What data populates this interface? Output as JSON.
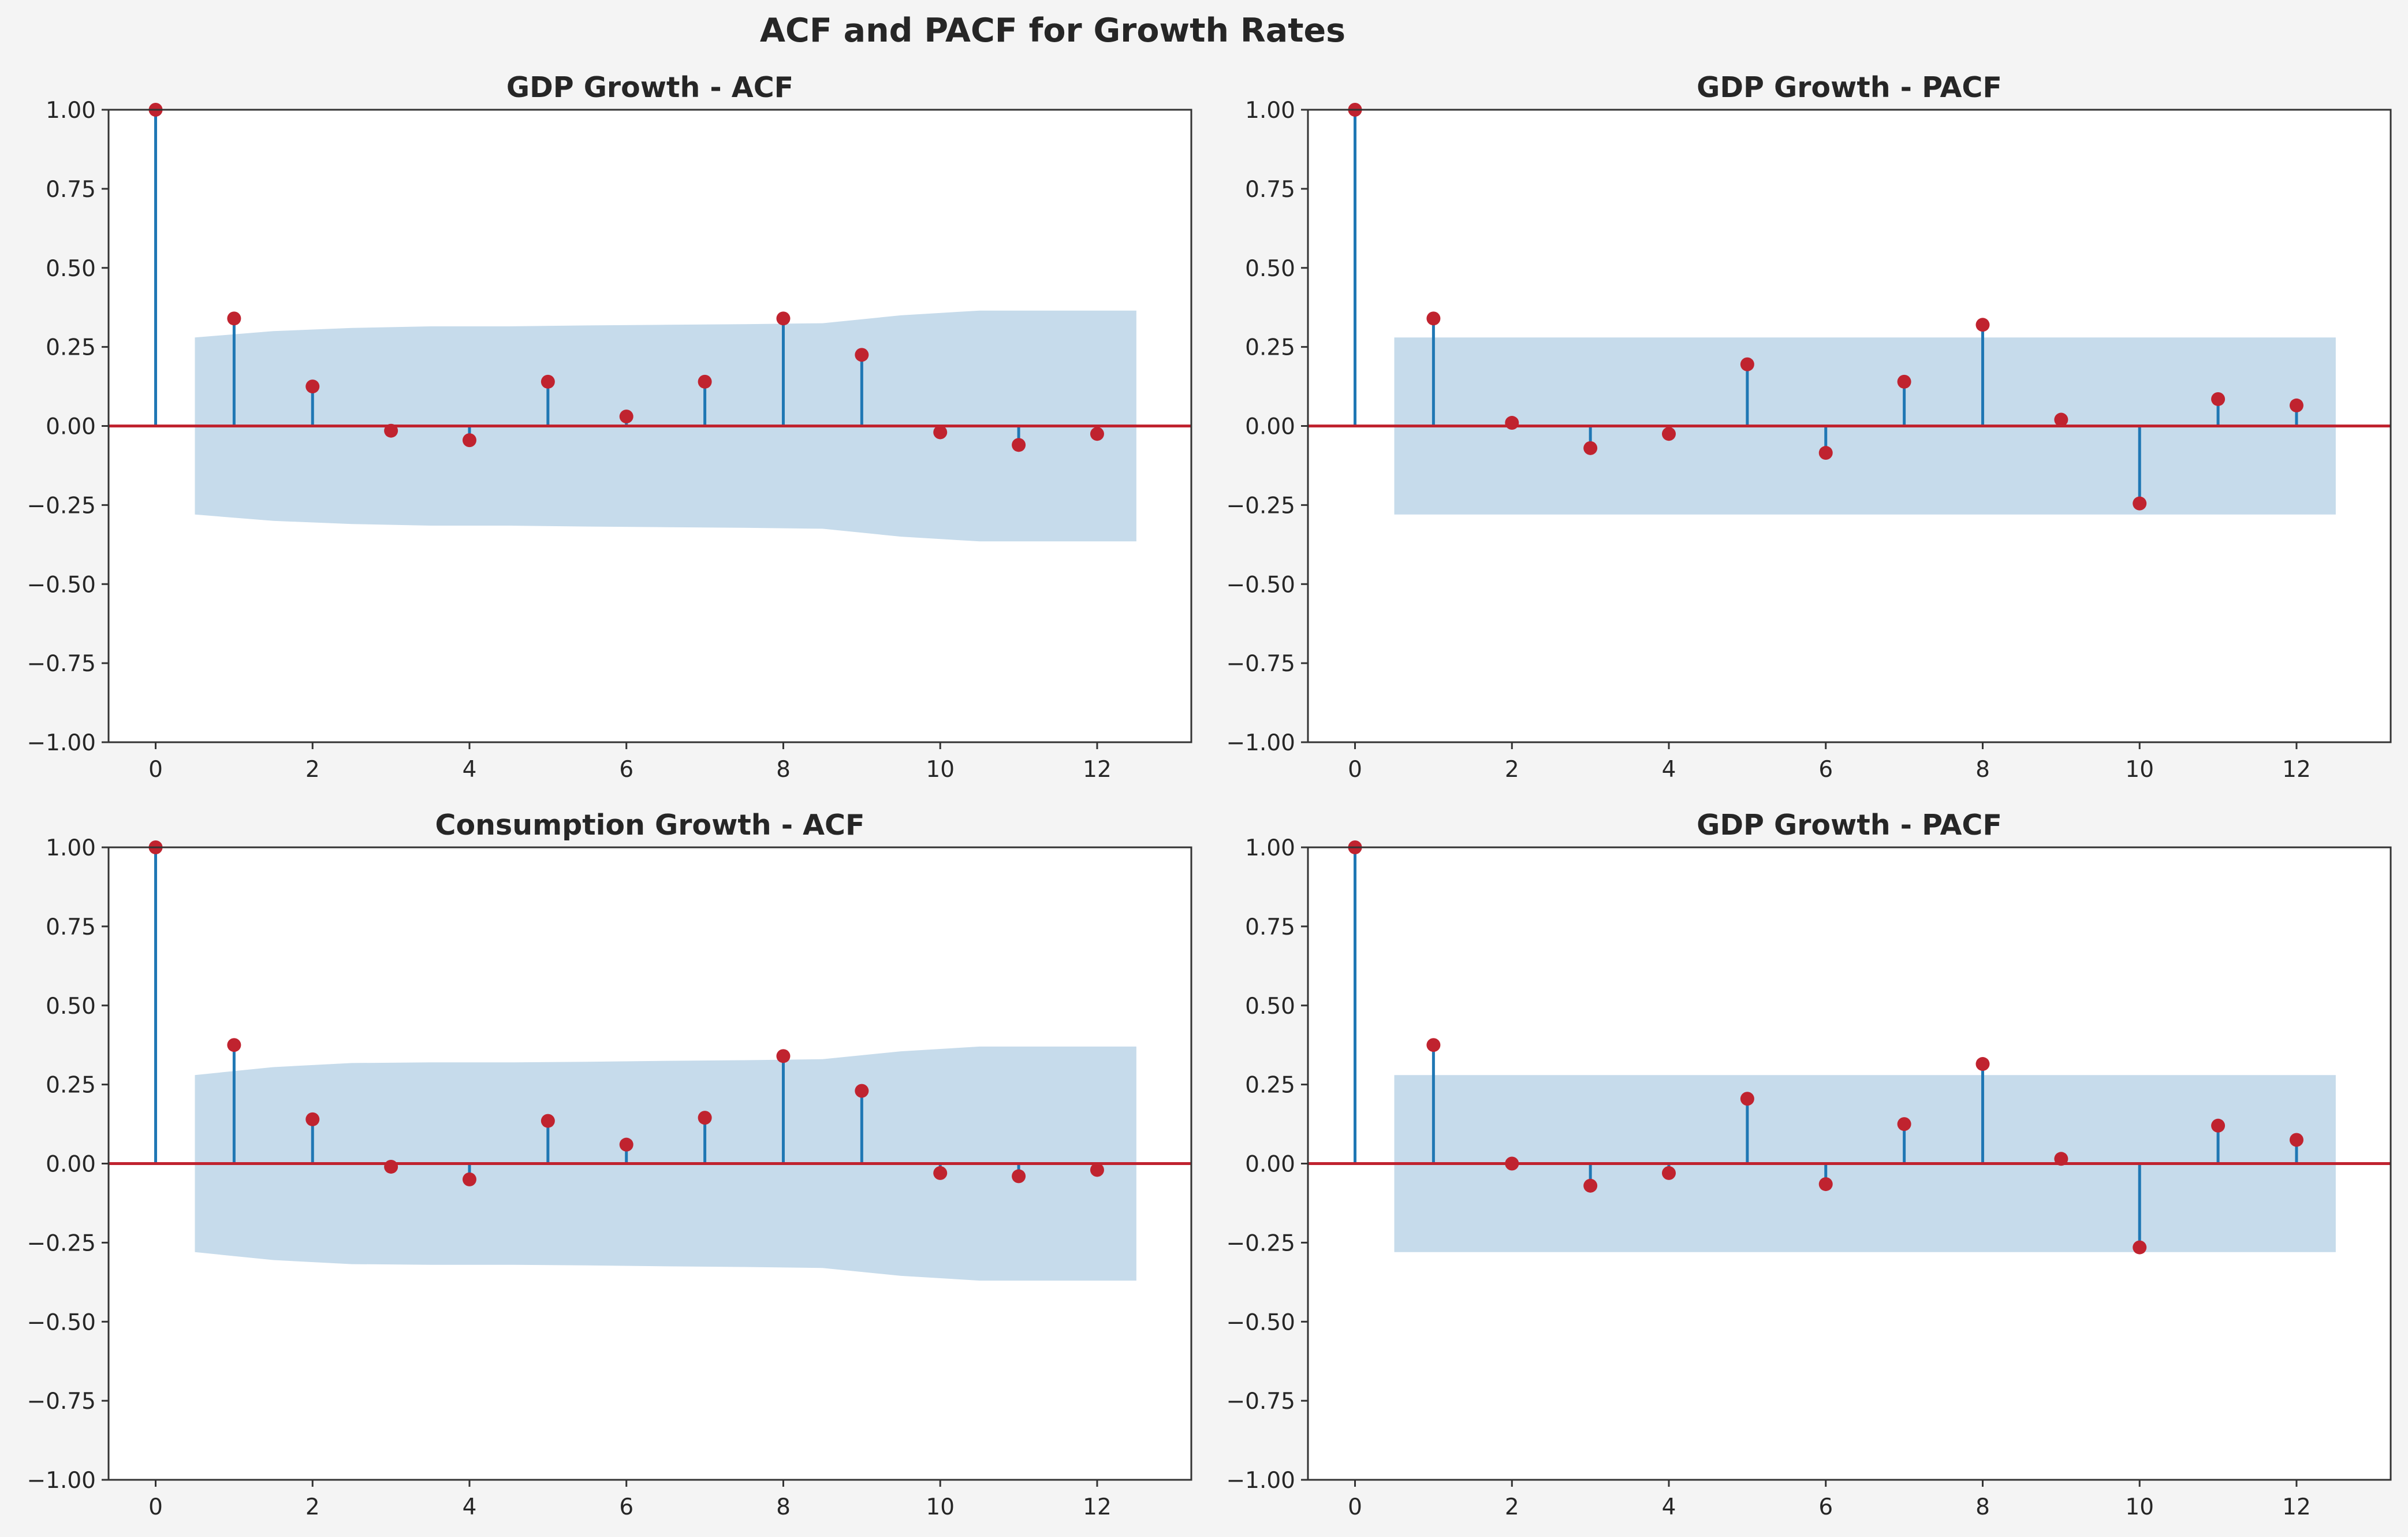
{
  "figure": {
    "suptitle": "ACF and PACF for Growth Rates",
    "background": "#f4f4f4"
  },
  "colors": {
    "stem": "#1f77b4",
    "marker": "#c0232f",
    "zero_line": "#c0232f",
    "confidence_band": "#c6dbeb",
    "axes_background": "#ffffff",
    "spine": "#333333"
  },
  "chart_data": [
    {
      "type": "stem",
      "title": "GDP Growth - ACF",
      "xlabel": "",
      "ylabel": "",
      "xlim": [
        -0.6,
        13.2
      ],
      "ylim": [
        -1.0,
        1.0
      ],
      "x_ticks": [
        "0",
        "2",
        "4",
        "6",
        "8",
        "10",
        "12"
      ],
      "y_ticks": [
        "1.00",
        "0.75",
        "0.50",
        "0.25",
        "0.00",
        "−0.25",
        "−0.50",
        "−0.75",
        "−1.00"
      ],
      "grid": false,
      "lags": [
        0,
        1,
        2,
        3,
        4,
        5,
        6,
        7,
        8,
        9,
        10,
        11,
        12
      ],
      "values": [
        1.0,
        0.34,
        0.125,
        -0.015,
        -0.045,
        0.14,
        0.03,
        0.14,
        0.34,
        0.225,
        -0.02,
        -0.06,
        -0.025
      ],
      "confidence_band": {
        "x": [
          0.5,
          1.5,
          2.5,
          3.5,
          4.5,
          5.5,
          6.5,
          7.5,
          8.5,
          9.5,
          10.5,
          11.5,
          12.5
        ],
        "upper": [
          0.28,
          0.3,
          0.31,
          0.315,
          0.315,
          0.318,
          0.32,
          0.322,
          0.325,
          0.35,
          0.365,
          0.365,
          0.365
        ]
      }
    },
    {
      "type": "stem",
      "title": "GDP Growth - PACF",
      "xlabel": "",
      "ylabel": "",
      "xlim": [
        -0.6,
        13.2
      ],
      "ylim": [
        -1.0,
        1.0
      ],
      "x_ticks": [
        "0",
        "2",
        "4",
        "6",
        "8",
        "10",
        "12"
      ],
      "y_ticks": [
        "1.00",
        "0.75",
        "0.50",
        "0.25",
        "0.00",
        "−0.25",
        "−0.50",
        "−0.75",
        "−1.00"
      ],
      "grid": false,
      "lags": [
        0,
        1,
        2,
        3,
        4,
        5,
        6,
        7,
        8,
        9,
        10,
        11,
        12
      ],
      "values": [
        1.0,
        0.34,
        0.01,
        -0.07,
        -0.025,
        0.195,
        -0.085,
        0.14,
        0.32,
        0.02,
        -0.245,
        0.085,
        0.065
      ],
      "confidence_band": {
        "x": [
          0.5,
          12.5
        ],
        "upper": [
          0.28,
          0.28
        ]
      }
    },
    {
      "type": "stem",
      "title": "Consumption Growth - ACF",
      "xlabel": "",
      "ylabel": "",
      "xlim": [
        -0.6,
        13.2
      ],
      "ylim": [
        -1.0,
        1.0
      ],
      "x_ticks": [
        "0",
        "2",
        "4",
        "6",
        "8",
        "10",
        "12"
      ],
      "y_ticks": [
        "1.00",
        "0.75",
        "0.50",
        "0.25",
        "0.00",
        "−0.25",
        "−0.50",
        "−0.75",
        "−1.00"
      ],
      "grid": false,
      "lags": [
        0,
        1,
        2,
        3,
        4,
        5,
        6,
        7,
        8,
        9,
        10,
        11,
        12
      ],
      "values": [
        1.0,
        0.375,
        0.14,
        -0.01,
        -0.05,
        0.135,
        0.06,
        0.145,
        0.34,
        0.23,
        -0.03,
        -0.04,
        -0.02
      ],
      "confidence_band": {
        "x": [
          0.5,
          1.5,
          2.5,
          3.5,
          4.5,
          5.5,
          6.5,
          7.5,
          8.5,
          9.5,
          10.5,
          11.5,
          12.5
        ],
        "upper": [
          0.28,
          0.305,
          0.318,
          0.32,
          0.32,
          0.322,
          0.325,
          0.327,
          0.33,
          0.355,
          0.37,
          0.37,
          0.37
        ]
      }
    },
    {
      "type": "stem",
      "title": "GDP Growth - PACF",
      "xlabel": "",
      "ylabel": "",
      "xlim": [
        -0.6,
        13.2
      ],
      "ylim": [
        -1.0,
        1.0
      ],
      "x_ticks": [
        "0",
        "2",
        "4",
        "6",
        "8",
        "10",
        "12"
      ],
      "y_ticks": [
        "1.00",
        "0.75",
        "0.50",
        "0.25",
        "0.00",
        "−0.25",
        "−0.50",
        "−0.75",
        "−1.00"
      ],
      "grid": false,
      "lags": [
        0,
        1,
        2,
        3,
        4,
        5,
        6,
        7,
        8,
        9,
        10,
        11,
        12
      ],
      "values": [
        1.0,
        0.375,
        0.0,
        -0.07,
        -0.03,
        0.205,
        -0.065,
        0.125,
        0.315,
        0.015,
        -0.265,
        0.12,
        0.075
      ],
      "confidence_band": {
        "x": [
          0.5,
          12.5
        ],
        "upper": [
          0.28,
          0.28
        ]
      }
    }
  ]
}
